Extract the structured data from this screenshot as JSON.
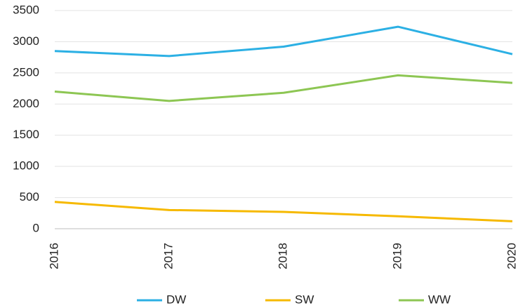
{
  "chart_data": {
    "type": "line",
    "categories": [
      "2016",
      "2017",
      "2018",
      "2019",
      "2020"
    ],
    "series": [
      {
        "name": "DW",
        "color": "#2cb0e4",
        "values": [
          2850,
          2770,
          2920,
          3240,
          2800
        ]
      },
      {
        "name": "SW",
        "color": "#f6b900",
        "values": [
          430,
          300,
          270,
          200,
          120
        ]
      },
      {
        "name": "WW",
        "color": "#8dc653",
        "values": [
          2200,
          2050,
          2180,
          2460,
          2340
        ]
      }
    ],
    "ylim": [
      0,
      3500
    ],
    "yticks": [
      0,
      500,
      1000,
      1500,
      2000,
      2500,
      3000,
      3500
    ],
    "grid": true,
    "legend": "bottom"
  }
}
